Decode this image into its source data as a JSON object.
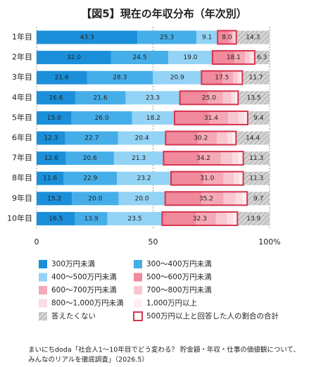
{
  "chart_data": {
    "type": "stacked-bar-horizontal",
    "title": "【図5】現在の年収分布（年次別）",
    "categories": [
      "1年目",
      "2年目",
      "3年目",
      "4年目",
      "5年目",
      "6年目",
      "7年目",
      "8年目",
      "9年目",
      "10年目"
    ],
    "series": [
      {
        "name": "300万円未満",
        "color": "#1b8fd9",
        "values": [
          43.3,
          32.0,
          21.6,
          16.6,
          15.0,
          12.3,
          12.6,
          11.6,
          15.2,
          16.5
        ],
        "value_labels": [
          "43.3",
          "32.0",
          "21.6",
          "16.6",
          "15.0",
          "12.3",
          "12.6",
          "11.6",
          "15.2",
          "16.5"
        ]
      },
      {
        "name": "300〜400万円未満",
        "color": "#45aee9",
        "values": [
          25.3,
          24.5,
          28.3,
          21.6,
          26.0,
          22.7,
          20.6,
          22.9,
          20.0,
          13.9
        ],
        "value_labels": [
          "25.3",
          "24.5",
          "28.3",
          "21.6",
          "26.0",
          "22.7",
          "20.6",
          "22.9",
          "20.0",
          "13.9"
        ]
      },
      {
        "name": "400〜500万円未満",
        "color": "#93d3f5",
        "values": [
          9.1,
          19.0,
          20.9,
          23.3,
          18.2,
          20.4,
          21.3,
          23.2,
          20.0,
          23.5
        ],
        "value_labels": [
          "9.1",
          "19.0",
          "20.9",
          "23.3",
          "18.2",
          "20.4",
          "21.3",
          "23.2",
          "20.0",
          "23.5"
        ]
      },
      {
        "name": "500〜600万円未満",
        "color": "#f08a9c",
        "values": [
          5.0,
          9.5,
          9.0,
          12.0,
          15.0,
          14.0,
          15.5,
          14.0,
          15.5,
          14.5
        ]
      },
      {
        "name": "600〜700万円未満",
        "color": "#f5a9b7",
        "values": [
          1.5,
          4.5,
          4.5,
          6.5,
          8.0,
          8.0,
          9.0,
          8.5,
          9.5,
          8.5
        ]
      },
      {
        "name": "700〜800万円未満",
        "color": "#f9c7d0",
        "values": [
          0.8,
          2.0,
          2.0,
          3.5,
          4.5,
          4.5,
          5.0,
          4.5,
          5.2,
          4.8
        ]
      },
      {
        "name": "800〜1,000万円未満",
        "color": "#fbdde3",
        "values": [
          0.4,
          1.2,
          1.2,
          1.8,
          2.4,
          2.2,
          2.7,
          2.3,
          3.0,
          2.6
        ]
      },
      {
        "name": "1,000万円以上",
        "color": "#fdeef1",
        "values": [
          0.3,
          0.9,
          0.8,
          1.2,
          1.5,
          1.5,
          2.0,
          1.7,
          2.0,
          1.9
        ]
      },
      {
        "name": "答えたくない",
        "color": "#cccccc",
        "hatch": true,
        "values": [
          14.3,
          6.3,
          11.7,
          13.5,
          9.4,
          14.4,
          11.3,
          11.3,
          9.7,
          13.9
        ],
        "value_labels": [
          "14.3",
          "6.3",
          "11.7",
          "13.5",
          "9.4",
          "14.4",
          "11.3",
          "11.3",
          "9.7",
          "13.9"
        ]
      }
    ],
    "totals": {
      "name": "500万円以上と回答した人の割合の合計",
      "color": "#d6334f",
      "values": [
        8.0,
        18.1,
        17.5,
        25.0,
        31.4,
        30.2,
        34.2,
        31.0,
        35.2,
        32.3
      ],
      "value_labels": [
        "8.0",
        "18.1",
        "17.5",
        "25.0",
        "31.4",
        "30.2",
        "34.2",
        "31.0",
        "35.2",
        "32.3"
      ]
    },
    "xlim": [
      0,
      100
    ],
    "xticks": [
      0,
      50,
      {
        "value": 100,
        "label": "100%"
      }
    ],
    "grid": true,
    "source": [
      "まいにちdoda「社会人1〜10年目でどう変わる？ 貯金額・年収・仕事の価値観について、",
      "みんなのリアルを徹底調査」（2026.5）"
    ]
  }
}
